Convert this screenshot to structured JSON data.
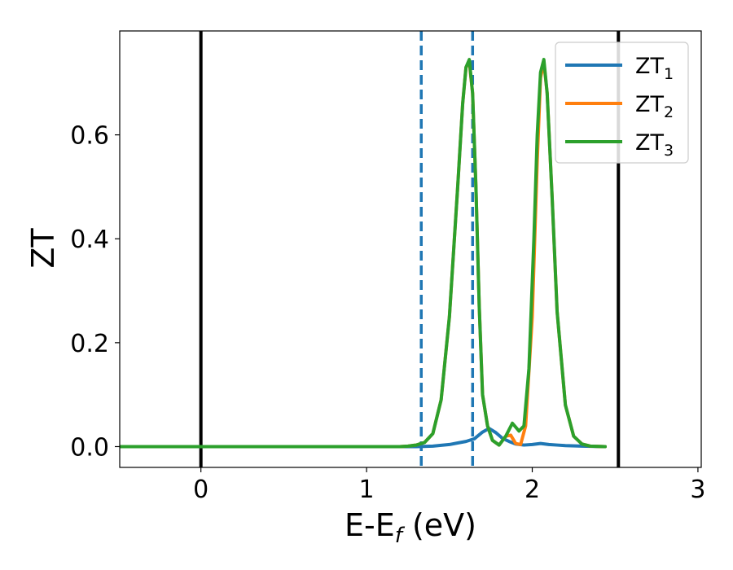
{
  "chart_data": {
    "type": "line",
    "title": "",
    "xlabel": {
      "main": "E-E",
      "sub": "f",
      "rest": " (eV)"
    },
    "ylabel": "ZT",
    "xlim": [
      -0.49,
      3.02
    ],
    "ylim": [
      -0.04,
      0.8
    ],
    "x_ticks": [
      0,
      1,
      2,
      3
    ],
    "y_ticks": [
      0.0,
      0.2,
      0.4,
      0.6
    ],
    "x_tick_labels": [
      "0",
      "1",
      "2",
      "3"
    ],
    "y_tick_labels": [
      "0.0",
      "0.2",
      "0.4",
      "0.6"
    ],
    "grid": false,
    "legend_position": "top-right",
    "vertical_lines": [
      {
        "x": 0.0,
        "style": "solid",
        "color": "#000000"
      },
      {
        "x": 2.52,
        "style": "solid",
        "color": "#000000"
      },
      {
        "x": 1.33,
        "style": "dashed",
        "color": "#1f77b4"
      },
      {
        "x": 1.64,
        "style": "dashed",
        "color": "#1f77b4"
      }
    ],
    "series": [
      {
        "name": "ZT1",
        "label_main": "ZT",
        "label_sub": "1",
        "color": "#1f77b4",
        "x": [
          -0.5,
          1.3,
          1.4,
          1.5,
          1.55,
          1.6,
          1.65,
          1.7,
          1.74,
          1.78,
          1.82,
          1.86,
          1.9,
          1.95,
          2.0,
          2.05,
          2.1,
          2.15,
          2.2,
          2.3,
          2.44
        ],
        "y": [
          0.0,
          0.0,
          0.001,
          0.004,
          0.007,
          0.01,
          0.015,
          0.028,
          0.035,
          0.027,
          0.016,
          0.01,
          0.005,
          0.003,
          0.004,
          0.006,
          0.004,
          0.003,
          0.002,
          0.001,
          0.0
        ]
      },
      {
        "name": "ZT2",
        "label_main": "ZT",
        "label_sub": "2",
        "color": "#ff7f0e",
        "x": [
          -0.5,
          1.2,
          1.25,
          1.3,
          1.35,
          1.4,
          1.45,
          1.5,
          1.55,
          1.58,
          1.6,
          1.62,
          1.64,
          1.66,
          1.68,
          1.7,
          1.73,
          1.76,
          1.8,
          1.84,
          1.87,
          1.9,
          1.93,
          1.96,
          2.0,
          2.03,
          2.05,
          2.07,
          2.09,
          2.12,
          2.15,
          2.2,
          2.25,
          2.3,
          2.35,
          2.44
        ],
        "y": [
          0.0,
          0.0,
          0.001,
          0.003,
          0.008,
          0.025,
          0.09,
          0.25,
          0.5,
          0.66,
          0.73,
          0.74,
          0.68,
          0.5,
          0.27,
          0.1,
          0.04,
          0.012,
          0.003,
          0.02,
          0.022,
          0.006,
          0.004,
          0.04,
          0.25,
          0.55,
          0.71,
          0.74,
          0.68,
          0.48,
          0.26,
          0.08,
          0.02,
          0.005,
          0.001,
          0.0
        ]
      },
      {
        "name": "ZT3",
        "label_main": "ZT",
        "label_sub": "3",
        "color": "#2ca02c",
        "x": [
          -0.5,
          1.2,
          1.25,
          1.3,
          1.35,
          1.4,
          1.45,
          1.5,
          1.55,
          1.58,
          1.6,
          1.62,
          1.64,
          1.66,
          1.68,
          1.7,
          1.73,
          1.76,
          1.8,
          1.84,
          1.88,
          1.92,
          1.95,
          1.98,
          2.01,
          2.03,
          2.05,
          2.07,
          2.09,
          2.12,
          2.15,
          2.2,
          2.25,
          2.3,
          2.35,
          2.44
        ],
        "y": [
          0.0,
          0.0,
          0.001,
          0.003,
          0.008,
          0.025,
          0.09,
          0.25,
          0.5,
          0.66,
          0.73,
          0.745,
          0.68,
          0.5,
          0.27,
          0.1,
          0.04,
          0.012,
          0.003,
          0.02,
          0.045,
          0.03,
          0.04,
          0.15,
          0.4,
          0.6,
          0.72,
          0.745,
          0.68,
          0.48,
          0.26,
          0.08,
          0.02,
          0.005,
          0.001,
          0.0
        ]
      }
    ]
  }
}
